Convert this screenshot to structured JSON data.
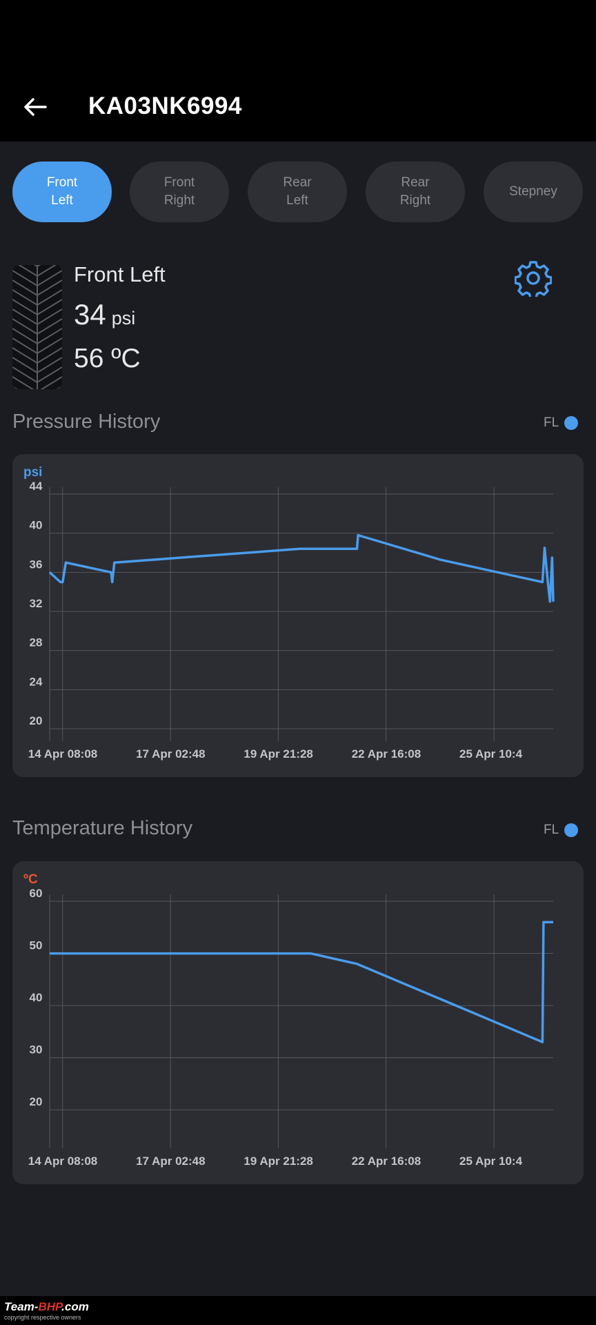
{
  "header": {
    "title": "KA03NK6994"
  },
  "tabs": [
    {
      "label": "Front\nLeft",
      "active": true
    },
    {
      "label": "Front\nRight",
      "active": false
    },
    {
      "label": "Rear\nLeft",
      "active": false
    },
    {
      "label": "Rear\nRight",
      "active": false
    },
    {
      "label": "Stepney",
      "active": false
    }
  ],
  "tyre_info": {
    "name": "Front Left",
    "pressure_value": "34",
    "pressure_unit": "psi",
    "temperature": "56 ºC"
  },
  "colors": {
    "accent": "#4a9cec",
    "temp_unit": "#e8552f",
    "series": "#4a9cec"
  },
  "icons": {
    "back": "arrow-left-icon",
    "settings": "gear-icon",
    "tyre": "tyre-tread-icon"
  },
  "pressure_section": {
    "title": "Pressure History",
    "legend": "FL"
  },
  "temperature_section": {
    "title": "Temperature History",
    "legend": "FL"
  },
  "chart_data": [
    {
      "type": "line",
      "unit_label": "psi",
      "yticks": [
        44,
        40,
        36,
        32,
        28,
        24,
        20
      ],
      "ylim": [
        20,
        44
      ],
      "xticks": [
        "14 Apr 08:08",
        "17 Apr 02:48",
        "19 Apr 21:28",
        "22 Apr 16:08",
        "25 Apr 10:4"
      ],
      "xlim": [
        -0.12,
        4.55
      ],
      "grid": true,
      "series": [
        {
          "name": "FL",
          "x": [
            -0.12,
            -0.02,
            0.0,
            0.03,
            0.45,
            0.46,
            0.48,
            2.2,
            2.73,
            2.74,
            3.5,
            4.45,
            4.47,
            4.5,
            4.52,
            4.54,
            4.55
          ],
          "y": [
            36,
            35,
            35,
            37,
            36,
            35,
            37,
            38.4,
            38.4,
            39.8,
            37.3,
            35,
            38.5,
            35,
            33,
            37.5,
            33
          ]
        }
      ]
    },
    {
      "type": "line",
      "unit_label": "ºC",
      "yticks": [
        60,
        50,
        40,
        30,
        20
      ],
      "ylim": [
        15,
        60
      ],
      "xticks": [
        "14 Apr 08:08",
        "17 Apr 02:48",
        "19 Apr 21:28",
        "22 Apr 16:08",
        "25 Apr 10:4"
      ],
      "xlim": [
        -0.12,
        4.55
      ],
      "grid": true,
      "series": [
        {
          "name": "FL",
          "x": [
            -0.12,
            2.3,
            2.73,
            4.45,
            4.46,
            4.47,
            4.55
          ],
          "y": [
            50,
            50,
            48,
            33,
            56,
            56,
            56
          ]
        }
      ]
    }
  ]
}
